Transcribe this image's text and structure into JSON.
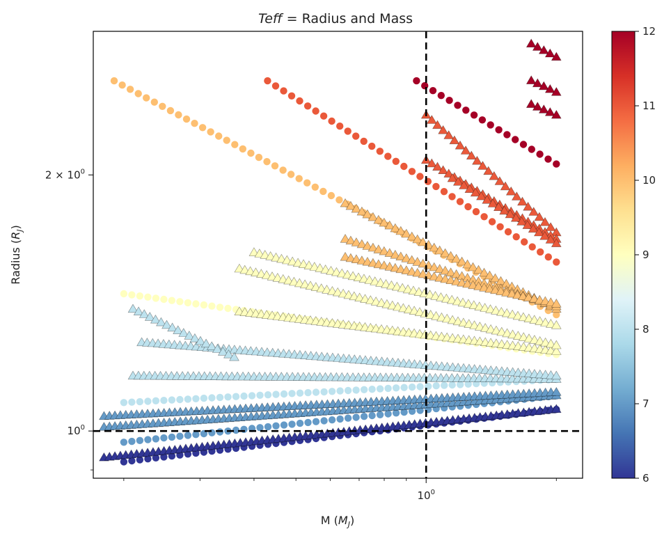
{
  "chart_data": {
    "type": "scatter",
    "title": "Teff = Radius and Mass",
    "title_italic": "Teff",
    "title_rest": " = Radius and Mass",
    "xlabel_main": "M (",
    "xlabel_sym": "M",
    "xlabel_sub": "J",
    "xlabel_close": ")",
    "ylabel_main": "Radius (",
    "ylabel_sym": "R",
    "ylabel_sub": "J",
    "ylabel_close": ")",
    "x_scale": "log",
    "y_scale": "log",
    "xlim": [
      0.17,
      2.3
    ],
    "ylim": [
      0.88,
      2.95
    ],
    "x_ticks": [
      {
        "value": 1,
        "base": "10",
        "exp": "0"
      }
    ],
    "y_ticks": [
      {
        "value": 1,
        "mult": "",
        "base": "10",
        "exp": "0"
      },
      {
        "value": 2,
        "mult": "2 × ",
        "base": "10",
        "exp": "0"
      }
    ],
    "reference_lines": [
      {
        "axis": "x",
        "value": 1,
        "style": "dashed",
        "color": "#000000"
      },
      {
        "axis": "y",
        "value": 1,
        "style": "dashed",
        "color": "#000000"
      }
    ],
    "colorbar": {
      "colormap": "RdYlBu_r",
      "min": 6,
      "max": 12,
      "ticks": [
        "6",
        "7",
        "8",
        "9",
        "10",
        "11",
        "12"
      ]
    },
    "series": [
      {
        "marker": "circle",
        "c": 6,
        "x_range": [
          0.2,
          2.0
        ],
        "y": [
          0.92,
          1.06
        ]
      },
      {
        "marker": "triangle",
        "c": 6,
        "x_range": [
          0.18,
          2.0
        ],
        "y": [
          0.93,
          1.06
        ]
      },
      {
        "marker": "circle",
        "c": 7,
        "x_range": [
          0.2,
          2.0
        ],
        "y": [
          0.97,
          1.1
        ]
      },
      {
        "marker": "triangle",
        "c": 7,
        "x_range": [
          0.18,
          2.0
        ],
        "y": [
          1.01,
          1.1
        ]
      },
      {
        "marker": "triangle",
        "c": 7,
        "x_range": [
          0.18,
          2.0
        ],
        "y": [
          1.04,
          1.11
        ]
      },
      {
        "marker": "circle",
        "c": 8,
        "x_range": [
          0.2,
          2.0
        ],
        "y": [
          1.08,
          1.15
        ]
      },
      {
        "marker": "triangle",
        "c": 8,
        "x_range": [
          0.21,
          2.0
        ],
        "y": [
          1.16,
          1.15
        ]
      },
      {
        "marker": "triangle",
        "c": 8,
        "x_range": [
          0.22,
          2.0
        ],
        "y": [
          1.27,
          1.16
        ]
      },
      {
        "marker": "triangle",
        "c": 8,
        "x_range": [
          0.21,
          0.36
        ],
        "y": [
          1.39,
          1.22
        ]
      },
      {
        "marker": "circle",
        "c": 9,
        "x_range": [
          0.2,
          2.0
        ],
        "y": [
          1.45,
          1.23
        ]
      },
      {
        "marker": "triangle",
        "c": 9,
        "x_range": [
          0.37,
          2.0
        ],
        "y": [
          1.38,
          1.24
        ]
      },
      {
        "marker": "triangle",
        "c": 9,
        "x_range": [
          0.37,
          2.0
        ],
        "y": [
          1.55,
          1.26
        ]
      },
      {
        "marker": "triangle",
        "c": 9,
        "x_range": [
          0.4,
          2.0
        ],
        "y": [
          1.62,
          1.33
        ]
      },
      {
        "marker": "circle",
        "c": 10,
        "x_range": [
          0.19,
          2.0
        ],
        "y": [
          2.58,
          1.37
        ]
      },
      {
        "marker": "triangle",
        "c": 10,
        "x_range": [
          0.65,
          2.0
        ],
        "y": [
          1.85,
          1.39
        ]
      },
      {
        "marker": "triangle",
        "c": 10,
        "x_range": [
          0.65,
          2.0
        ],
        "y": [
          1.68,
          1.4
        ]
      },
      {
        "marker": "triangle",
        "c": 10,
        "x_range": [
          0.65,
          2.0
        ],
        "y": [
          1.6,
          1.41
        ]
      },
      {
        "marker": "circle",
        "c": 11,
        "x_range": [
          0.43,
          2.0
        ],
        "y": [
          2.58,
          1.58
        ]
      },
      {
        "marker": "triangle",
        "c": 11,
        "x_range": [
          1.0,
          2.0
        ],
        "y": [
          2.35,
          1.71
        ]
      },
      {
        "marker": "triangle",
        "c": 11,
        "x_range": [
          1.0,
          2.0
        ],
        "y": [
          2.08,
          1.68
        ]
      },
      {
        "marker": "triangle",
        "c": 11,
        "x_range": [
          1.15,
          2.0
        ],
        "y": [
          1.98,
          1.66
        ]
      },
      {
        "marker": "circle",
        "c": 12,
        "x_range": [
          0.95,
          2.0
        ],
        "y": [
          2.58,
          2.06
        ]
      },
      {
        "marker": "triangle",
        "c": 12,
        "x_range": [
          1.75,
          2.0
        ],
        "y": [
          2.85,
          2.75
        ]
      },
      {
        "marker": "triangle",
        "c": 12,
        "x_range": [
          1.75,
          2.0
        ],
        "y": [
          2.58,
          2.5
        ]
      },
      {
        "marker": "triangle",
        "c": 12,
        "x_range": [
          1.75,
          2.0
        ],
        "y": [
          2.42,
          2.35
        ]
      }
    ]
  }
}
